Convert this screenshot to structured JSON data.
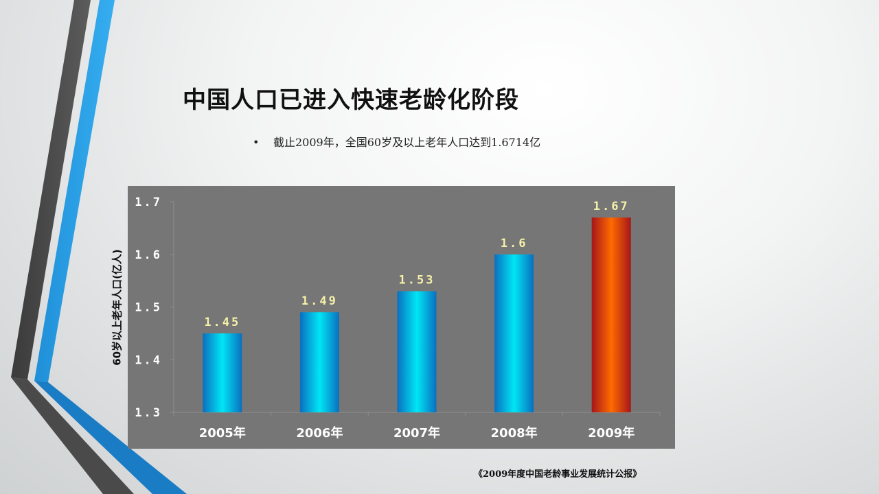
{
  "slide": {
    "title": "中国人口已进入快速老龄化阶段",
    "bullet": "截止2009年，全国60岁及以上老年人口达到1.6714亿",
    "source": "《2009年度中国老龄事业发展统计公报》"
  },
  "colors": {
    "plot_bg": "#767676",
    "bar_normal": "#00e0f0",
    "bar_highlight": "#ff6a00",
    "data_label": "#f5f0a8"
  },
  "chart_data": {
    "type": "bar",
    "categories": [
      "2005年",
      "2006年",
      "2007年",
      "2008年",
      "2009年"
    ],
    "values": [
      1.45,
      1.49,
      1.53,
      1.6,
      1.67
    ],
    "data_labels": [
      "1.45",
      "1.49",
      "1.53",
      "1.6",
      "1.67"
    ],
    "highlight_index": 4,
    "ylabel": "60岁以上老年人口(亿人)",
    "ylim": [
      1.3,
      1.7
    ],
    "yticks": [
      1.3,
      1.4,
      1.5,
      1.6,
      1.7
    ],
    "ytick_labels": [
      "1.3",
      "1.4",
      "1.5",
      "1.6",
      "1.7"
    ],
    "grid": false
  }
}
